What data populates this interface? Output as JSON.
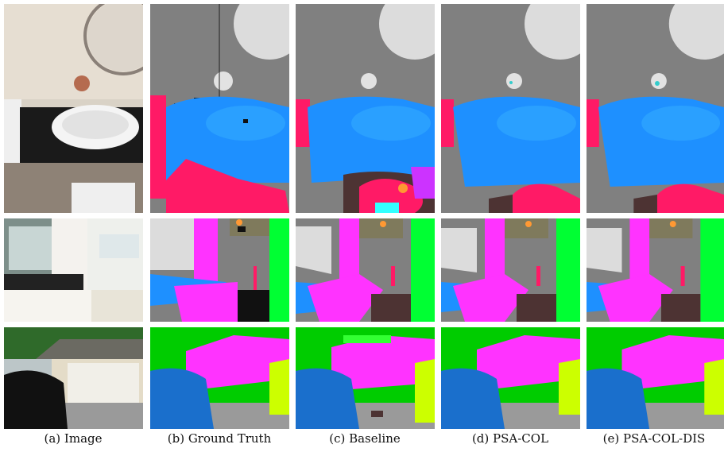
{
  "captions": [
    "(a) Image",
    "(b) Ground Truth",
    "(c) Baseline",
    "(d) PSA-COL",
    "(e) PSA-COL-DIS"
  ],
  "rows": [
    {
      "kind": "bathroom-sink"
    },
    {
      "kind": "bathroom-vanity"
    },
    {
      "kind": "garage-car"
    }
  ],
  "palette": {
    "wall": "#808080",
    "ceiling": "#dcdcdc",
    "sink": "#1e90ff",
    "cabinet": "#ff1a66",
    "mirror": "#dcdcdc",
    "pink": "#ff33ff",
    "green": "#00ff33",
    "olive": "#7f7a5c",
    "floor": "#4d3333",
    "tree": "#00cc00",
    "car": "#1a6fcc",
    "road": "#9a9a9a",
    "plant": "#ccff00"
  }
}
